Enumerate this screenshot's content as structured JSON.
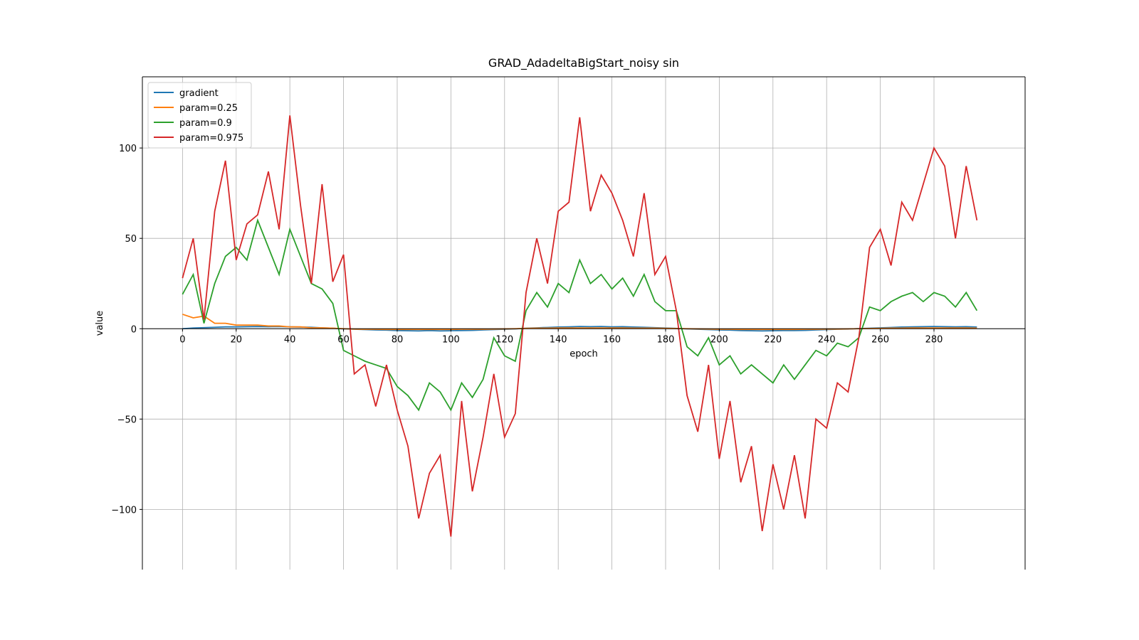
{
  "chart_data": {
    "type": "line",
    "title": "GRAD_AdadeltaBigStart_noisy sin",
    "x_label": "epoch",
    "y_label": "value",
    "x": [
      0,
      4,
      8,
      12,
      16,
      20,
      24,
      28,
      32,
      36,
      40,
      44,
      48,
      52,
      56,
      60,
      64,
      68,
      72,
      76,
      80,
      84,
      88,
      92,
      96,
      100,
      104,
      108,
      112,
      116,
      120,
      124,
      128,
      132,
      136,
      140,
      144,
      148,
      152,
      156,
      160,
      164,
      168,
      172,
      176,
      180,
      184,
      188,
      192,
      196,
      200,
      204,
      208,
      212,
      216,
      220,
      224,
      228,
      232,
      236,
      240,
      244,
      248,
      252,
      256,
      260,
      264,
      268,
      272,
      276,
      280,
      284,
      288,
      292,
      296
    ],
    "series": [
      {
        "name": "gradient",
        "color": "#1f77b4",
        "values": [
          0,
          0.4,
          0.6,
          0.8,
          1,
          1,
          1.1,
          1.2,
          1.1,
          1.2,
          1,
          0.9,
          0.8,
          0.5,
          0.3,
          -0.1,
          -0.3,
          -0.5,
          -0.7,
          -0.8,
          -1,
          -1.1,
          -1.2,
          -1,
          -1.2,
          -1.1,
          -1,
          -0.9,
          -0.7,
          -0.5,
          -0.3,
          -0.1,
          0.3,
          0.5,
          0.7,
          0.9,
          1,
          1.2,
          1.1,
          1.2,
          1,
          1.1,
          0.9,
          0.8,
          0.6,
          0.4,
          0.2,
          -0.1,
          -0.3,
          -0.5,
          -0.7,
          -0.8,
          -1,
          -1.1,
          -1.2,
          -1.1,
          -1,
          -1,
          -0.9,
          -0.7,
          -0.5,
          -0.3,
          -0.2,
          0.1,
          0.3,
          0.5,
          0.7,
          0.9,
          1,
          1.1,
          1.2,
          1.1,
          1,
          1.1,
          0.9
        ]
      },
      {
        "name": "param=0.25",
        "color": "#ff7f0e",
        "values": [
          8,
          6,
          7,
          3,
          3,
          2,
          2,
          2,
          1.5,
          1.5,
          1,
          1,
          0.5,
          0.5,
          0.3,
          0,
          -0.2,
          -0.3,
          -0.3,
          -0.4,
          -0.4,
          -0.4,
          -0.4,
          -0.4,
          -0.4,
          -0.4,
          -0.3,
          -0.3,
          -0.3,
          -0.2,
          -0.1,
          0,
          0.2,
          0.3,
          0.3,
          0.4,
          0.4,
          0.4,
          0.4,
          0.4,
          0.4,
          0.4,
          0.3,
          0.3,
          0.3,
          0.2,
          0.1,
          0,
          -0.1,
          -0.2,
          -0.3,
          -0.3,
          -0.4,
          -0.4,
          -0.4,
          -0.4,
          -0.4,
          -0.4,
          -0.3,
          -0.3,
          -0.2,
          -0.2,
          -0.1,
          0,
          0.1,
          0.2,
          0.3,
          0.3,
          0.4,
          0.4,
          0.4,
          0.4,
          0.4,
          0.4,
          0.3
        ]
      },
      {
        "name": "param=0.9",
        "color": "#2ca02c",
        "values": [
          19,
          30,
          3,
          25,
          40,
          45,
          38,
          60,
          45,
          30,
          55,
          40,
          25,
          22,
          14,
          -12,
          -15,
          -18,
          -20,
          -22,
          -32,
          -37,
          -45,
          -30,
          -35,
          -45,
          -30,
          -38,
          -28,
          -5,
          -15,
          -18,
          10,
          20,
          12,
          25,
          20,
          38,
          25,
          30,
          22,
          28,
          18,
          30,
          15,
          10,
          10,
          -10,
          -15,
          -5,
          -20,
          -15,
          -25,
          -20,
          -25,
          -30,
          -20,
          -28,
          -20,
          -12,
          -15,
          -8,
          -10,
          -5,
          12,
          10,
          15,
          18,
          20,
          15,
          20,
          18,
          12,
          20,
          10
        ]
      },
      {
        "name": "param=0.975",
        "color": "#d62728",
        "values": [
          28,
          50,
          5,
          65,
          93,
          38,
          58,
          63,
          87,
          55,
          118,
          68,
          25,
          80,
          26,
          41,
          -25,
          -20,
          -43,
          -20,
          -45,
          -65,
          -105,
          -80,
          -70,
          -115,
          -40,
          -90,
          -60,
          -25,
          -60,
          -47,
          20,
          50,
          25,
          65,
          70,
          117,
          65,
          85,
          75,
          60,
          40,
          75,
          30,
          40,
          10,
          -37,
          -57,
          -20,
          -72,
          -40,
          -85,
          -65,
          -112,
          -75,
          -100,
          -70,
          -105,
          -50,
          -55,
          -30,
          -35,
          -5,
          45,
          55,
          35,
          70,
          60,
          80,
          100,
          90,
          50,
          90,
          60
        ]
      }
    ],
    "xlim": [
      -14.95,
      313.95
    ],
    "ylim": [
      -133.3,
      139.4
    ],
    "xticks": [
      0,
      20,
      40,
      60,
      80,
      100,
      120,
      140,
      160,
      180,
      200,
      220,
      240,
      260,
      280
    ],
    "yticks": [
      {
        "value": -100,
        "label": "−100"
      },
      {
        "value": -50,
        "label": "−50"
      },
      0,
      50,
      100
    ],
    "grid": true,
    "legend": "upper left"
  }
}
